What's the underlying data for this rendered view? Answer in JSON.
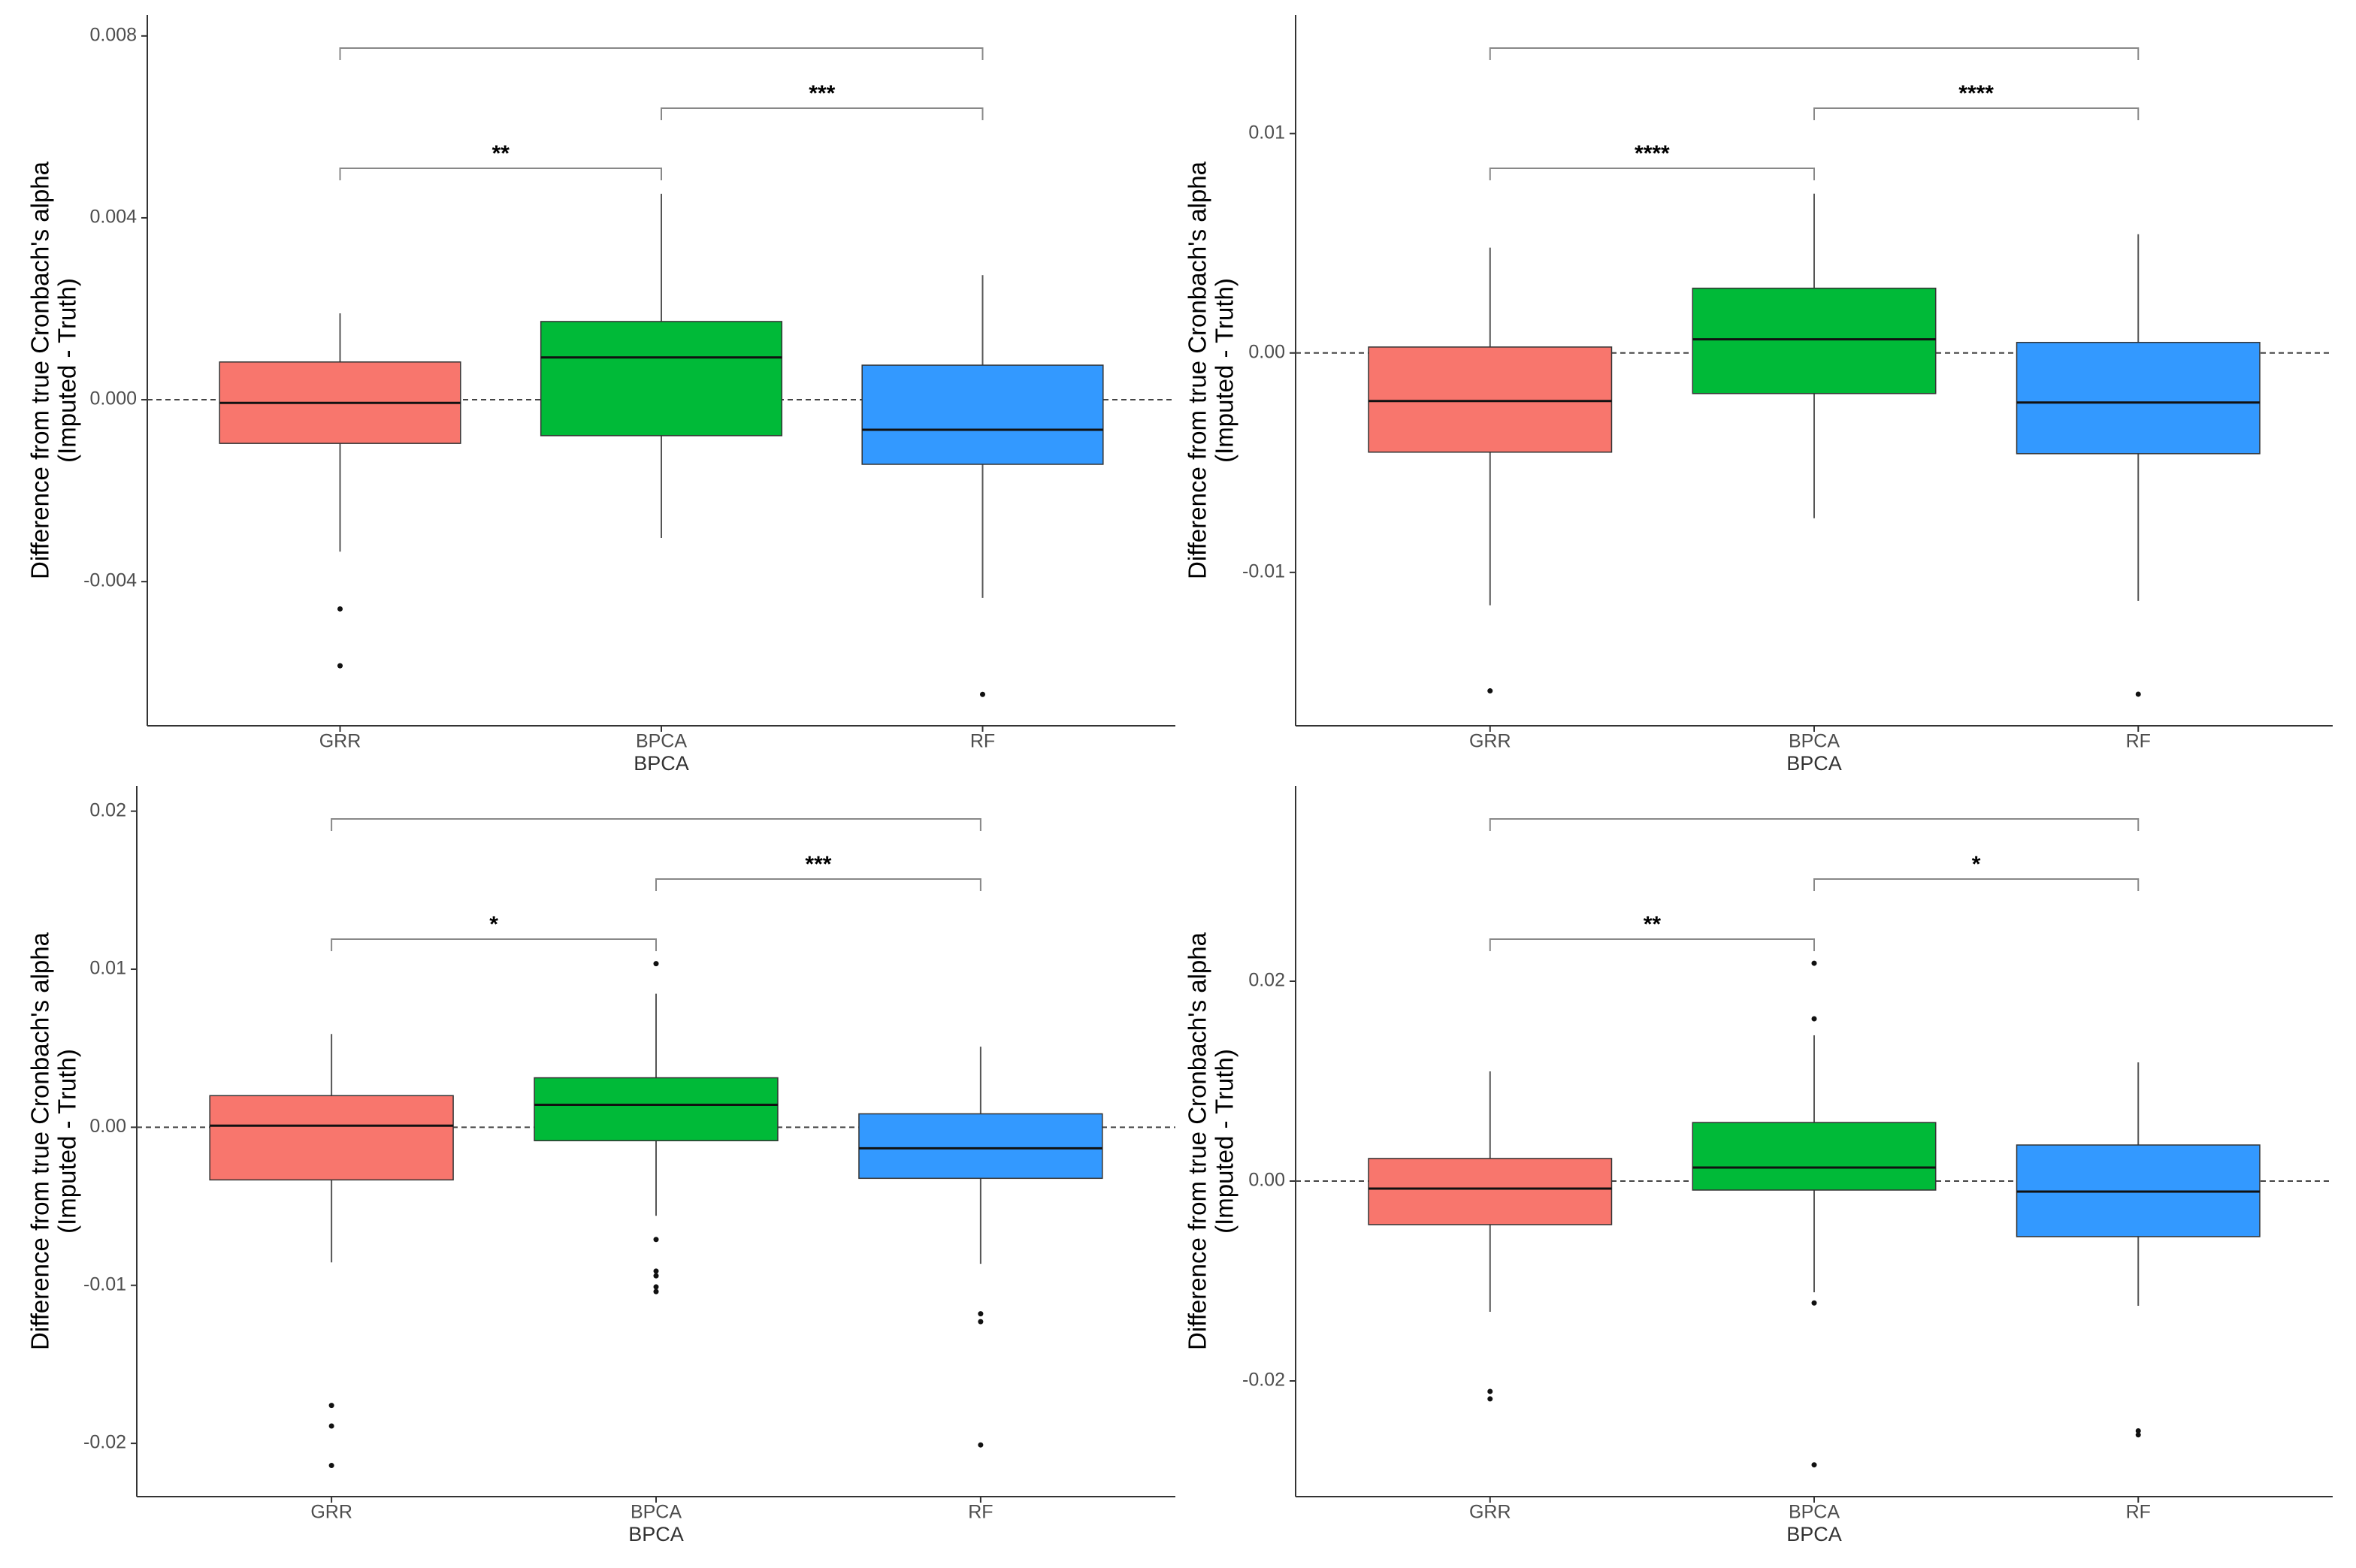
{
  "chart_data": [
    {
      "type": "box",
      "ylabel": [
        "Difference from true Cronbach's alpha",
        "(Imputed - Truth)"
      ],
      "xlabel": "BPCA",
      "categories": [
        "GRR",
        "BPCA",
        "RF"
      ],
      "ylim": [
        -0.00717,
        0.00846
      ],
      "yticks": [
        {
          "value": -0.004,
          "label": "-0.004"
        },
        {
          "value": 0,
          "label": "0.000"
        },
        0.004,
        0.008
      ],
      "hline": 0,
      "boxes": [
        {
          "color": "#F8766D",
          "low": -0.00334,
          "q1": -0.00096,
          "median": -7e-05,
          "q3": 0.00083,
          "high": 0.0019,
          "outliers": [
            -0.0046,
            -0.00585
          ]
        },
        {
          "color": "#00BA38",
          "low": -0.00304,
          "q1": -0.00079,
          "median": 0.00093,
          "q3": 0.00172,
          "high": 0.00453,
          "outliers": []
        },
        {
          "color": "#3399FF",
          "low": -0.00436,
          "q1": -0.00142,
          "median": -0.00066,
          "q3": 0.00076,
          "high": 0.00274,
          "outliers": [
            -0.00648
          ]
        }
      ],
      "comparisons": [
        {
          "between": [
            "GRR",
            "BPCA"
          ],
          "label": "**"
        },
        {
          "between": [
            "BPCA",
            "RF"
          ],
          "label": "***"
        },
        {
          "between": [
            "GRR",
            "RF"
          ]
        }
      ]
    },
    {
      "type": "box",
      "ylabel": [
        "Difference from true Cronbach's alpha",
        "(Imputed - Truth)"
      ],
      "xlabel": "BPCA",
      "categories": [
        "GRR",
        "BPCA",
        "RF"
      ],
      "ylim": [
        -0.01699,
        0.0154
      ],
      "yticks": [
        -0.01,
        {
          "value": 0,
          "label": "0.00"
        },
        0.01
      ],
      "hline": 0,
      "boxes": [
        {
          "color": "#F8766D",
          "low": -0.0115,
          "q1": -0.00452,
          "median": -0.00219,
          "q3": 0.00027,
          "high": 0.0048,
          "outliers": [
            -0.0154
          ]
        },
        {
          "color": "#00BA38",
          "low": -0.00753,
          "q1": -0.00185,
          "median": 0.00062,
          "q3": 0.00295,
          "high": 0.00726,
          "outliers": []
        },
        {
          "color": "#3399FF",
          "low": -0.0113,
          "q1": -0.00459,
          "median": -0.00226,
          "q3": 0.00048,
          "high": 0.00541,
          "outliers": [
            -0.01555
          ]
        }
      ],
      "comparisons": [
        {
          "between": [
            "GRR",
            "BPCA"
          ],
          "label": "****"
        },
        {
          "between": [
            "BPCA",
            "RF"
          ],
          "label": "****"
        },
        {
          "between": [
            "GRR",
            "RF"
          ]
        }
      ]
    },
    {
      "type": "box",
      "ylabel": [
        "Difference from true Cronbach's alpha",
        "(Imputed - Truth)"
      ],
      "xlabel": "BPCA",
      "categories": [
        "GRR",
        "BPCA",
        "RF"
      ],
      "ylim": [
        -0.02337,
        0.0216
      ],
      "yticks": [
        -0.02,
        -0.01,
        {
          "value": 0,
          "label": "0.00"
        },
        0.01,
        0.02
      ],
      "hline": 0,
      "boxes": [
        {
          "color": "#F8766D",
          "low": -0.00855,
          "q1": -0.00333,
          "median": 0.0001,
          "q3": 0.002,
          "high": 0.0059,
          "outliers": [
            -0.0176,
            -0.0189,
            -0.0214
          ]
        },
        {
          "color": "#00BA38",
          "low": -0.0056,
          "q1": -0.00085,
          "median": 0.00142,
          "q3": 0.00313,
          "high": 0.00845,
          "outliers": [
            0.01035,
            -0.0071,
            -0.0091,
            -0.0094,
            -0.0101,
            -0.0104
          ]
        },
        {
          "color": "#3399FF",
          "low": -0.00864,
          "q1": -0.00323,
          "median": -0.00133,
          "q3": 0.00085,
          "high": 0.0051,
          "outliers": [
            -0.0118,
            -0.0123,
            -0.0201
          ]
        }
      ],
      "comparisons": [
        {
          "between": [
            "GRR",
            "BPCA"
          ],
          "label": "*"
        },
        {
          "between": [
            "BPCA",
            "RF"
          ],
          "label": "***"
        },
        {
          "between": [
            "GRR",
            "RF"
          ]
        }
      ]
    },
    {
      "type": "box",
      "ylabel": [
        "Difference from true Cronbach's alpha",
        "(Imputed - Truth)"
      ],
      "xlabel": "BPCA",
      "categories": [
        "GRR",
        "BPCA",
        "RF"
      ],
      "ylim": [
        -0.03158,
        0.03955
      ],
      "yticks": [
        -0.02,
        {
          "value": 0,
          "label": "0.00"
        },
        0.02
      ],
      "hline": 0,
      "boxes": [
        {
          "color": "#F8766D",
          "low": -0.01308,
          "q1": -0.00436,
          "median": -0.00075,
          "q3": 0.00226,
          "high": 0.01098,
          "outliers": [
            -0.02105,
            -0.0218
          ]
        },
        {
          "color": "#00BA38",
          "low": -0.01113,
          "q1": -0.0009,
          "median": 0.00135,
          "q3": 0.00586,
          "high": 0.01459,
          "outliers": [
            0.0218,
            0.01624,
            -0.0122,
            -0.0284
          ]
        },
        {
          "color": "#3399FF",
          "low": -0.01248,
          "q1": -0.00556,
          "median": -0.00105,
          "q3": 0.00361,
          "high": 0.01188,
          "outliers": [
            -0.025,
            -0.0254
          ]
        }
      ],
      "comparisons": [
        {
          "between": [
            "GRR",
            "BPCA"
          ],
          "label": "**"
        },
        {
          "between": [
            "BPCA",
            "RF"
          ],
          "label": "*"
        },
        {
          "between": [
            "GRR",
            "RF"
          ]
        }
      ]
    }
  ]
}
